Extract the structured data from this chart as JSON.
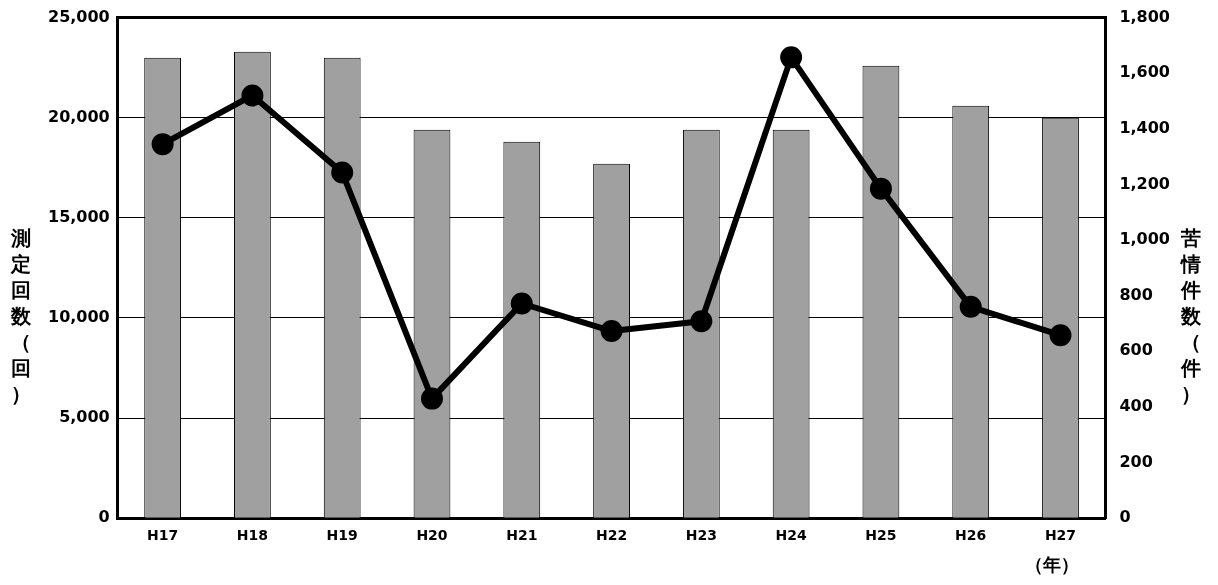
{
  "chart_data": {
    "type": "bar",
    "categories": [
      "H17",
      "H18",
      "H19",
      "H20",
      "H21",
      "H22",
      "H23",
      "H24",
      "H25",
      "H26",
      "H27"
    ],
    "series": [
      {
        "color": "#a0a0a0",
        "values": [
          23000,
          23300,
          23000,
          19400,
          18800,
          17700,
          19400,
          19400,
          22600,
          20600,
          20000
        ]
      },
      {
        "type": "line",
        "axis": "y2",
        "color": "#000000",
        "values": [
          1345,
          1520,
          1243,
          430,
          772,
          673,
          708,
          1657,
          1185,
          760,
          658
        ]
      }
    ],
    "ylabel": "測定回数（回）",
    "y2label": "苦情件数（件）",
    "xlabel": "（年）",
    "ylim": [
      0,
      25000
    ],
    "yticks": [
      {
        "value": 0,
        "label": "0"
      },
      {
        "value": 5000,
        "label": "5,000"
      },
      {
        "value": 10000,
        "label": "10,000"
      },
      {
        "value": 15000,
        "label": "15,000"
      },
      {
        "value": 20000,
        "label": "20,000"
      },
      {
        "value": 25000,
        "label": "25,000"
      }
    ],
    "y2lim": [
      0,
      1800
    ],
    "y2ticks": [
      {
        "value": 0,
        "label": "0"
      },
      {
        "value": 200,
        "label": "200"
      },
      {
        "value": 400,
        "label": "400"
      },
      {
        "value": 600,
        "label": "600"
      },
      {
        "value": 800,
        "label": "800"
      },
      {
        "value": 1000,
        "label": "1,000"
      },
      {
        "value": 1200,
        "label": "1,200"
      },
      {
        "value": 1400,
        "label": "1,400"
      },
      {
        "value": 1600,
        "label": "1,600"
      },
      {
        "value": 1800,
        "label": "1,800"
      }
    ],
    "grid": "y",
    "legend": false,
    "marker": "circle",
    "line_style": "solid"
  }
}
